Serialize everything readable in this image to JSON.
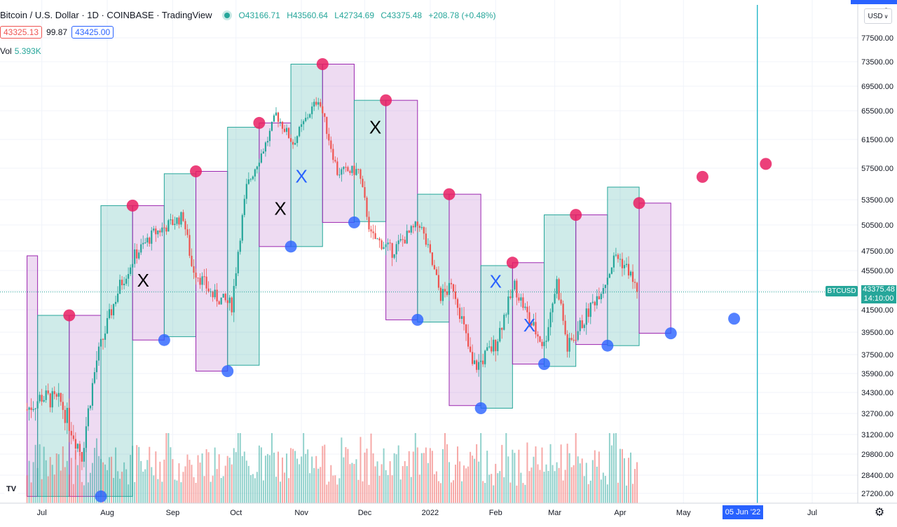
{
  "header": {
    "title": "Bitcoin / U.S. Dollar · 1D · COINBASE · TradingView",
    "open": "O43166.71",
    "high": "H43560.64",
    "low": "L42734.69",
    "close": "C43375.48",
    "change": "+208.78 (+0.48%)",
    "sell_price": "43325.13",
    "spread": "99.87",
    "buy_price": "43425.00",
    "vol_label": "Vol",
    "vol_value": "5.393K"
  },
  "toolbar": {
    "currency": "USD",
    "currency_icon": "chevron-down-icon",
    "top_tick_fragment": "8"
  },
  "last_price": {
    "symbol": "BTCUSD",
    "price": "43375.48",
    "countdown": "14:10:00"
  },
  "crosshair_date": "05 Jun '22",
  "colors": {
    "up": "#26a69a",
    "down": "#ef5350",
    "green_box": "#26a69a",
    "purple_box": "#9c27b0",
    "pink_dot": "#e91e63",
    "blue_dot": "#2962ff",
    "crosshair": "#00acc1"
  },
  "chart_data": {
    "type": "candlestick",
    "symbol": "BTCUSD",
    "price_axis_ticks": [
      "77500.00",
      "73500.00",
      "69500.00",
      "65500.00",
      "61500.00",
      "57500.00",
      "53500.00",
      "50500.00",
      "47500.00",
      "45500.00",
      "43500.00",
      "41500.00",
      "39500.00",
      "37500.00",
      "35900.00",
      "34300.00",
      "32700.00",
      "31200.00",
      "29800.00",
      "28400.00",
      "27200.00"
    ],
    "time_axis_ticks": [
      "Jul",
      "Aug",
      "Sep",
      "Oct",
      "Nov",
      "Dec",
      "2022",
      "Feb",
      "Mar",
      "Apr",
      "May",
      "Jul"
    ],
    "boxes": [
      {
        "type": "purple",
        "start": "2021-06-24",
        "end": "2021-06-29",
        "high": 47000,
        "low": 27000
      },
      {
        "type": "green",
        "start": "2021-06-29",
        "end": "2021-07-14",
        "high": 41000,
        "low": 27000
      },
      {
        "type": "purple",
        "start": "2021-07-14",
        "end": "2021-07-29",
        "high": 41000,
        "low": 27000
      },
      {
        "type": "green",
        "start": "2021-07-29",
        "end": "2021-08-13",
        "high": 52800,
        "low": 27000
      },
      {
        "type": "purple",
        "start": "2021-08-13",
        "end": "2021-08-28",
        "high": 52800,
        "low": 38800
      },
      {
        "type": "green",
        "start": "2021-08-28",
        "end": "2021-09-12",
        "high": 56800,
        "low": 39100
      },
      {
        "type": "purple",
        "start": "2021-09-12",
        "end": "2021-09-27",
        "high": 57100,
        "low": 36100
      },
      {
        "type": "green",
        "start": "2021-09-27",
        "end": "2021-10-12",
        "high": 63200,
        "low": 36600
      },
      {
        "type": "purple",
        "start": "2021-10-12",
        "end": "2021-10-27",
        "high": 63800,
        "low": 48000
      },
      {
        "type": "green",
        "start": "2021-10-27",
        "end": "2021-11-11",
        "high": 73100,
        "low": 48000
      },
      {
        "type": "purple",
        "start": "2021-11-11",
        "end": "2021-11-26",
        "high": 73100,
        "low": 50800
      },
      {
        "type": "green",
        "start": "2021-11-26",
        "end": "2021-12-11",
        "high": 67200,
        "low": 50900
      },
      {
        "type": "purple",
        "start": "2021-12-11",
        "end": "2021-12-26",
        "high": 67200,
        "low": 40600
      },
      {
        "type": "green",
        "start": "2021-12-26",
        "end": "2022-01-10",
        "high": 54200,
        "low": 40400
      },
      {
        "type": "purple",
        "start": "2022-01-10",
        "end": "2022-01-25",
        "high": 54200,
        "low": 33300
      },
      {
        "type": "green",
        "start": "2022-01-25",
        "end": "2022-02-09",
        "high": 46000,
        "low": 33100
      },
      {
        "type": "purple",
        "start": "2022-02-09",
        "end": "2022-02-24",
        "high": 46300,
        "low": 36700
      },
      {
        "type": "green",
        "start": "2022-02-24",
        "end": "2022-03-11",
        "high": 51700,
        "low": 36500
      },
      {
        "type": "purple",
        "start": "2022-03-11",
        "end": "2022-03-26",
        "high": 51700,
        "low": 38400
      },
      {
        "type": "green",
        "start": "2022-03-26",
        "end": "2022-04-10",
        "high": 55100,
        "low": 38300
      },
      {
        "type": "purple",
        "start": "2022-04-10",
        "end": "2022-04-25",
        "high": 53100,
        "low": 39400
      }
    ],
    "pink_dots": [
      {
        "date": "2021-07-14",
        "price": 41000
      },
      {
        "date": "2021-08-13",
        "price": 52800
      },
      {
        "date": "2021-09-12",
        "price": 57100
      },
      {
        "date": "2021-10-12",
        "price": 63800
      },
      {
        "date": "2021-11-11",
        "price": 73100
      },
      {
        "date": "2021-12-11",
        "price": 67200
      },
      {
        "date": "2022-01-10",
        "price": 54200
      },
      {
        "date": "2022-02-09",
        "price": 46300
      },
      {
        "date": "2022-03-11",
        "price": 51700
      },
      {
        "date": "2022-04-10",
        "price": 53100
      },
      {
        "date": "2022-05-10",
        "price": 56400
      },
      {
        "date": "2022-06-09",
        "price": 58100
      }
    ],
    "blue_dots": [
      {
        "date": "2021-07-29",
        "price": 27000
      },
      {
        "date": "2021-08-28",
        "price": 38800
      },
      {
        "date": "2021-09-27",
        "price": 36100
      },
      {
        "date": "2021-10-27",
        "price": 48000
      },
      {
        "date": "2021-11-26",
        "price": 50800
      },
      {
        "date": "2021-12-26",
        "price": 40600
      },
      {
        "date": "2022-01-25",
        "price": 33100
      },
      {
        "date": "2022-02-24",
        "price": 36700
      },
      {
        "date": "2022-03-26",
        "price": 38300
      },
      {
        "date": "2022-04-25",
        "price": 39400
      },
      {
        "date": "2022-05-25",
        "price": 40700
      }
    ],
    "x_marks": [
      {
        "label": "X",
        "color": "black",
        "date": "2021-08-18",
        "price": 44400
      },
      {
        "label": "X",
        "color": "black",
        "date": "2021-10-22",
        "price": 52300
      },
      {
        "label": "X",
        "color": "blue",
        "date": "2021-11-01",
        "price": 56300
      },
      {
        "label": "X",
        "color": "black",
        "date": "2021-12-06",
        "price": 63000
      },
      {
        "label": "X",
        "color": "blue",
        "date": "2022-02-01",
        "price": 44300
      },
      {
        "label": "X",
        "color": "blue",
        "date": "2022-02-17",
        "price": 40000
      }
    ],
    "candles_key_points": [
      {
        "date": "2021-06-24",
        "close": 33000
      },
      {
        "date": "2021-07-01",
        "close": 34000
      },
      {
        "date": "2021-07-10",
        "close": 33500
      },
      {
        "date": "2021-07-20",
        "close": 29800
      },
      {
        "date": "2021-07-27",
        "close": 37000
      },
      {
        "date": "2021-08-07",
        "close": 44000
      },
      {
        "date": "2021-08-14",
        "close": 47000
      },
      {
        "date": "2021-08-23",
        "close": 49500
      },
      {
        "date": "2021-09-06",
        "close": 51500
      },
      {
        "date": "2021-09-10",
        "close": 46000
      },
      {
        "date": "2021-09-20",
        "close": 43000
      },
      {
        "date": "2021-09-29",
        "close": 42000
      },
      {
        "date": "2021-10-06",
        "close": 55000
      },
      {
        "date": "2021-10-16",
        "close": 61500
      },
      {
        "date": "2021-10-20",
        "close": 65000
      },
      {
        "date": "2021-10-28",
        "close": 61000
      },
      {
        "date": "2021-11-09",
        "close": 67500
      },
      {
        "date": "2021-11-18",
        "close": 57000
      },
      {
        "date": "2021-11-28",
        "close": 57200
      },
      {
        "date": "2021-12-04",
        "close": 49200
      },
      {
        "date": "2021-12-14",
        "close": 47500
      },
      {
        "date": "2021-12-27",
        "close": 50700
      },
      {
        "date": "2022-01-06",
        "close": 43000
      },
      {
        "date": "2022-01-12",
        "close": 43900
      },
      {
        "date": "2022-01-21",
        "close": 36500
      },
      {
        "date": "2022-01-24",
        "close": 36700
      },
      {
        "date": "2022-02-01",
        "close": 38500
      },
      {
        "date": "2022-02-10",
        "close": 44000
      },
      {
        "date": "2022-02-17",
        "close": 40500
      },
      {
        "date": "2022-02-24",
        "close": 38300
      },
      {
        "date": "2022-03-02",
        "close": 44400
      },
      {
        "date": "2022-03-07",
        "close": 38000
      },
      {
        "date": "2022-03-16",
        "close": 41000
      },
      {
        "date": "2022-03-25",
        "close": 44500
      },
      {
        "date": "2022-03-30",
        "close": 47100
      },
      {
        "date": "2022-04-05",
        "close": 45500
      },
      {
        "date": "2022-04-09",
        "close": 43375
      }
    ],
    "volume_max": 30000,
    "crosshair_date": "2022-06-05",
    "last_price": 43375.48
  }
}
